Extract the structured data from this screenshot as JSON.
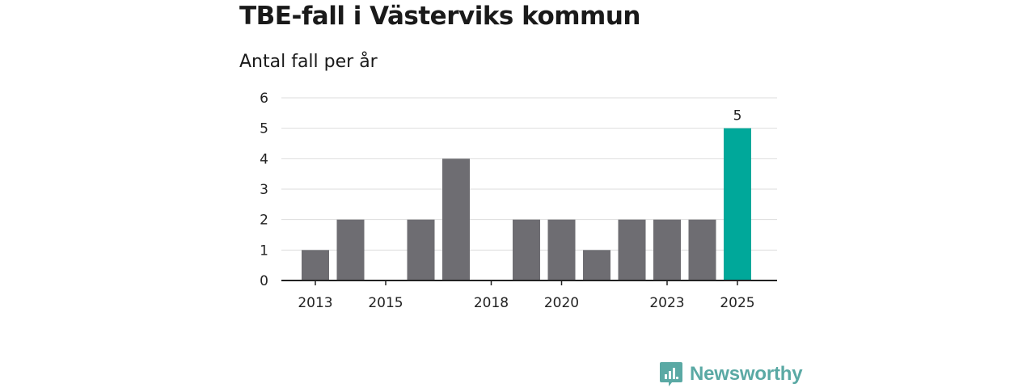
{
  "header": {
    "title": "TBE-fall i Västerviks kommun",
    "subtitle": "Antal fall per år"
  },
  "brand": {
    "name": "Newsworthy",
    "icon": "newsworthy-logo-icon"
  },
  "colors": {
    "bar": "#6e6d72",
    "highlight": "#00a89a",
    "grid": "#dddddd",
    "axis": "#222222",
    "brand": "#5aa9a4"
  },
  "chart_data": {
    "type": "bar",
    "title": "TBE-fall i Västerviks kommun",
    "ylabel": "Antal fall per år",
    "xlabel": "",
    "categories": [
      2013,
      2014,
      2015,
      2016,
      2017,
      2018,
      2019,
      2020,
      2021,
      2022,
      2023,
      2024,
      2025
    ],
    "values": [
      1,
      2,
      0,
      2,
      4,
      0,
      2,
      2,
      1,
      2,
      2,
      2,
      5
    ],
    "x_tick_labels": [
      "2013",
      "2015",
      "2018",
      "2020",
      "2023",
      "2025"
    ],
    "y_ticks": [
      0,
      1,
      2,
      3,
      4,
      5,
      6
    ],
    "ylim": [
      0,
      6
    ],
    "grid": true,
    "highlight_category": 2025,
    "data_labels": [
      {
        "category": 2025,
        "text": "5"
      }
    ]
  }
}
